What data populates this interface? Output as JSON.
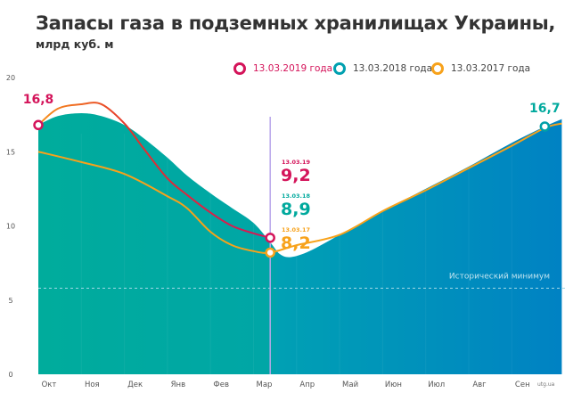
{
  "header": {
    "title": "Запасы газа в подземных хранилищах Украины,",
    "subtitle": "млрд куб. м"
  },
  "source": "utg.ua",
  "chart_data": {
    "type": "area",
    "title": "Запасы газа в подземных хранилищах Украины,",
    "ylabel": "млрд куб. м",
    "ylim": [
      0,
      20
    ],
    "yticks": [
      "0",
      "5",
      "10",
      "15",
      "20"
    ],
    "ytick_values": [
      0,
      5,
      10,
      15,
      20
    ],
    "xticks": [
      "Окт",
      "Ноя",
      "Дек",
      "Янв",
      "Фев",
      "Мар",
      "Апр",
      "Май",
      "Июн",
      "Июл",
      "Авг",
      "Сен"
    ],
    "grid": false,
    "legend_placement": "top-right",
    "colors": {
      "s2019": "#d4145a",
      "s2018": "#00a99d",
      "s2017": "#f7a21b",
      "area_end": "#0082c3",
      "marker_line": "#b9a6ea",
      "minimum": "#9fd7e6"
    },
    "series": [
      {
        "name": "13.03.2018 года",
        "kind": "area",
        "color": "#00a99d",
        "season_start": "2017-10-01",
        "points": [
          [
            "2017-10-01",
            16.8
          ],
          [
            "2017-10-15",
            17.4
          ],
          [
            "2017-11-01",
            17.6
          ],
          [
            "2017-11-15",
            17.4
          ],
          [
            "2017-12-01",
            16.8
          ],
          [
            "2017-12-15",
            15.9
          ],
          [
            "2018-01-01",
            14.6
          ],
          [
            "2018-01-15",
            13.4
          ],
          [
            "2018-02-01",
            12.2
          ],
          [
            "2018-02-15",
            11.2
          ],
          [
            "2018-03-01",
            10.2
          ],
          [
            "2018-03-13",
            8.9
          ],
          [
            "2018-03-20",
            8.1
          ],
          [
            "2018-03-28",
            7.9
          ],
          [
            "2018-04-10",
            8.3
          ],
          [
            "2018-05-01",
            9.4
          ],
          [
            "2018-06-01",
            11.0
          ],
          [
            "2018-07-01",
            12.5
          ],
          [
            "2018-08-01",
            14.0
          ],
          [
            "2018-09-01",
            15.6
          ],
          [
            "2018-09-24",
            16.7
          ],
          [
            "2018-10-06",
            17.2
          ]
        ]
      },
      {
        "name": "13.03.2019 года",
        "kind": "line",
        "color": "#d4145a",
        "season_start": "2018-10-01",
        "points": [
          [
            "2018-10-01",
            16.8
          ],
          [
            "2018-10-15",
            17.9
          ],
          [
            "2018-11-01",
            18.2
          ],
          [
            "2018-11-15",
            18.2
          ],
          [
            "2018-12-01",
            16.9
          ],
          [
            "2018-12-15",
            15.2
          ],
          [
            "2019-01-01",
            13.2
          ],
          [
            "2019-01-15",
            12.1
          ],
          [
            "2019-02-01",
            10.9
          ],
          [
            "2019-02-15",
            10.0
          ],
          [
            "2019-03-01",
            9.5
          ],
          [
            "2019-03-13",
            9.2
          ]
        ]
      },
      {
        "name": "13.03.2017 года",
        "kind": "line",
        "color": "#f7a21b",
        "season_start": "2016-10-01",
        "points": [
          [
            "2016-10-01",
            15.0
          ],
          [
            "2016-11-01",
            14.3
          ],
          [
            "2016-12-01",
            13.5
          ],
          [
            "2017-01-01",
            12.0
          ],
          [
            "2017-01-15",
            11.2
          ],
          [
            "2017-02-01",
            9.6
          ],
          [
            "2017-02-15",
            8.7
          ],
          [
            "2017-03-01",
            8.3
          ],
          [
            "2017-03-13",
            8.2
          ],
          [
            "2017-04-01",
            8.7
          ],
          [
            "2017-05-01",
            9.4
          ],
          [
            "2017-06-01",
            11.0
          ],
          [
            "2017-07-01",
            12.4
          ],
          [
            "2017-08-01",
            13.9
          ],
          [
            "2017-09-01",
            15.4
          ],
          [
            "2017-09-24",
            16.6
          ],
          [
            "2017-10-06",
            16.9
          ]
        ]
      }
    ],
    "annotations": {
      "start_2019": "16,8",
      "end_2018": "16,7",
      "labels": [
        {
          "date": "13.03.19",
          "value": "9,2",
          "color": "#d4145a"
        },
        {
          "date": "13.03.18",
          "value": "8,9",
          "color": "#00a99d"
        },
        {
          "date": "13.03.17",
          "value": "8,2",
          "color": "#f7a21b"
        }
      ],
      "historical_minimum": {
        "label": "Исторический минимум",
        "value": 5.8
      }
    }
  }
}
